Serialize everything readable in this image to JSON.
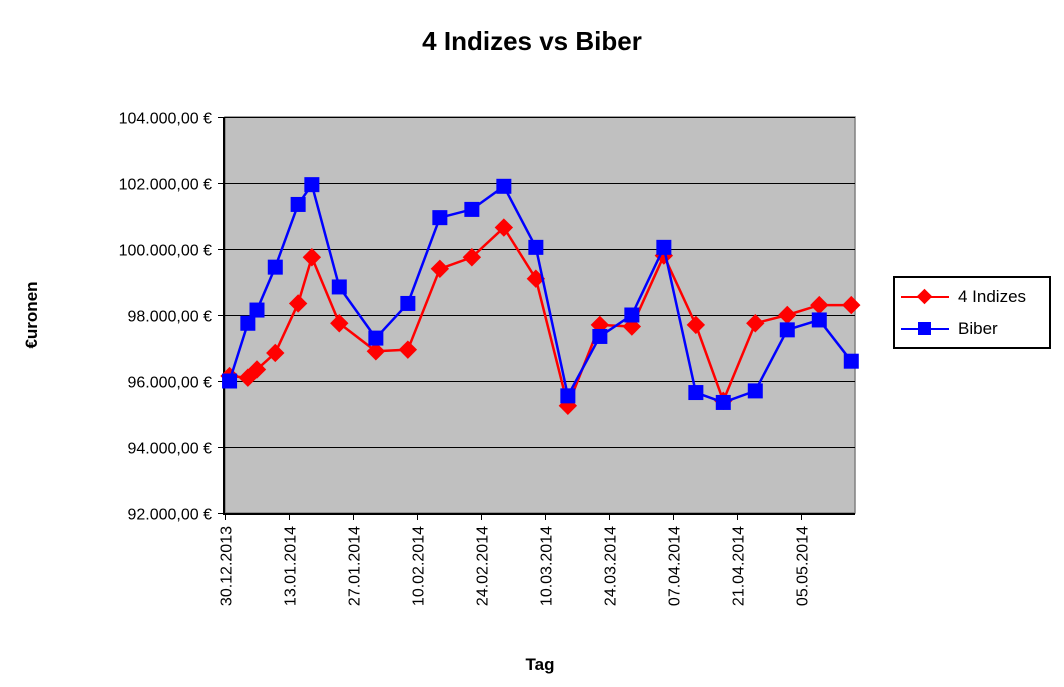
{
  "chart_data": {
    "type": "line",
    "title": "4 Indizes vs Biber",
    "xlabel": "Tag",
    "ylabel": "€uronen",
    "ylim": [
      92000,
      104000
    ],
    "y_tick_step": 2000,
    "y_tick_labels": [
      "104.000,00 €",
      "102.000,00 €",
      "100.000,00 €",
      "98.000,00 €",
      "96.000,00 €",
      "94.000,00 €",
      "92.000,00 €"
    ],
    "x_tick_labels": [
      "30.12.2013",
      "13.01.2014",
      "27.01.2014",
      "10.02.2014",
      "24.02.2014",
      "10.03.2014",
      "24.03.2014",
      "07.04.2014",
      "21.04.2014",
      "05.05.2014"
    ],
    "x_axis_start": "30.12.2013",
    "x_tick_interval_days": 14,
    "grid": "horizontal-only",
    "plot_background": "#c0c0c0",
    "plot_border": "#808080",
    "legend_position": "right",
    "series": [
      {
        "name": "4 Indizes",
        "color": "#ff0000",
        "marker": "diamond",
        "points": [
          {
            "date": "31.12.2013",
            "day": 1,
            "value": 96150
          },
          {
            "date": "04.01.2014",
            "day": 5,
            "value": 96100
          },
          {
            "date": "06.01.2014",
            "day": 7,
            "value": 96350
          },
          {
            "date": "10.01.2014",
            "day": 11,
            "value": 96850
          },
          {
            "date": "15.01.2014",
            "day": 16,
            "value": 98350
          },
          {
            "date": "18.01.2014",
            "day": 19,
            "value": 99750
          },
          {
            "date": "24.01.2014",
            "day": 25,
            "value": 97750
          },
          {
            "date": "01.02.2014",
            "day": 33,
            "value": 96900
          },
          {
            "date": "08.02.2014",
            "day": 40,
            "value": 96950
          },
          {
            "date": "15.02.2014",
            "day": 47,
            "value": 99400
          },
          {
            "date": "22.02.2014",
            "day": 54,
            "value": 99750
          },
          {
            "date": "01.03.2014",
            "day": 61,
            "value": 100650
          },
          {
            "date": "08.03.2014",
            "day": 68,
            "value": 99100
          },
          {
            "date": "15.03.2014",
            "day": 75,
            "value": 95250
          },
          {
            "date": "22.03.2014",
            "day": 82,
            "value": 97700
          },
          {
            "date": "29.03.2014",
            "day": 89,
            "value": 97650
          },
          {
            "date": "05.04.2014",
            "day": 96,
            "value": 99800
          },
          {
            "date": "12.04.2014",
            "day": 103,
            "value": 97700
          },
          {
            "date": "18.04.2014",
            "day": 109,
            "value": 95400
          },
          {
            "date": "25.04.2014",
            "day": 116,
            "value": 97750
          },
          {
            "date": "02.05.2014",
            "day": 123,
            "value": 98000
          },
          {
            "date": "09.05.2014",
            "day": 130,
            "value": 98300
          },
          {
            "date": "16.05.2014",
            "day": 137,
            "value": 98300
          }
        ]
      },
      {
        "name": "Biber",
        "color": "#0000ff",
        "marker": "square",
        "points": [
          {
            "date": "31.12.2013",
            "day": 1,
            "value": 96000
          },
          {
            "date": "04.01.2014",
            "day": 5,
            "value": 97750
          },
          {
            "date": "06.01.2014",
            "day": 7,
            "value": 98150
          },
          {
            "date": "10.01.2014",
            "day": 11,
            "value": 99450
          },
          {
            "date": "15.01.2014",
            "day": 16,
            "value": 101350
          },
          {
            "date": "18.01.2014",
            "day": 19,
            "value": 101950
          },
          {
            "date": "24.01.2014",
            "day": 25,
            "value": 98850
          },
          {
            "date": "01.02.2014",
            "day": 33,
            "value": 97300
          },
          {
            "date": "08.02.2014",
            "day": 40,
            "value": 98350
          },
          {
            "date": "15.02.2014",
            "day": 47,
            "value": 100950
          },
          {
            "date": "22.02.2014",
            "day": 54,
            "value": 101200
          },
          {
            "date": "01.03.2014",
            "day": 61,
            "value": 101900
          },
          {
            "date": "08.03.2014",
            "day": 68,
            "value": 100050
          },
          {
            "date": "15.03.2014",
            "day": 75,
            "value": 95550
          },
          {
            "date": "22.03.2014",
            "day": 82,
            "value": 97350
          },
          {
            "date": "29.03.2014",
            "day": 89,
            "value": 98000
          },
          {
            "date": "05.04.2014",
            "day": 96,
            "value": 100050
          },
          {
            "date": "12.04.2014",
            "day": 103,
            "value": 95650
          },
          {
            "date": "18.04.2014",
            "day": 109,
            "value": 95350
          },
          {
            "date": "25.04.2014",
            "day": 116,
            "value": 95700
          },
          {
            "date": "02.05.2014",
            "day": 123,
            "value": 97550
          },
          {
            "date": "09.05.2014",
            "day": 130,
            "value": 97850
          },
          {
            "date": "16.05.2014",
            "day": 137,
            "value": 96600
          }
        ]
      }
    ]
  }
}
